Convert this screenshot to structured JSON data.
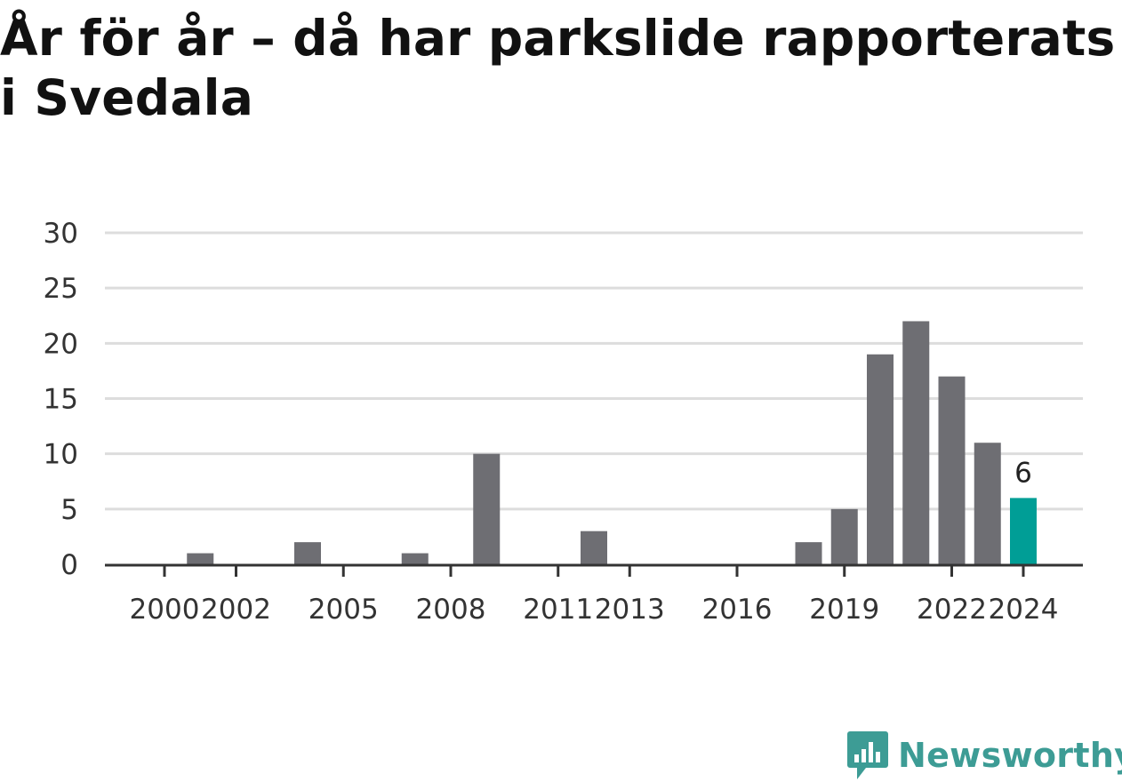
{
  "title": "År för år – då har parkslide rapporterats i Svedala",
  "brand": {
    "name": "Newsworthy",
    "icon": "newsworthy-logo-icon",
    "color": "#3d9c95"
  },
  "colors": {
    "bar": "#6e6e73",
    "highlight": "#009e96",
    "grid": "#dddddd",
    "axis": "#333333"
  },
  "chart_data": {
    "type": "bar",
    "title": "År för år – då har parkslide rapporterats i Svedala",
    "xlabel": "",
    "ylabel": "",
    "ylim": [
      0,
      30
    ],
    "yticks": [
      0,
      5,
      10,
      15,
      20,
      25,
      30
    ],
    "xticks": [
      "2000",
      "2002",
      "2005",
      "2008",
      "2011",
      "2013",
      "2016",
      "2019",
      "2022",
      "2024"
    ],
    "grid": true,
    "categories": [
      "2000",
      "2001",
      "2002",
      "2003",
      "2004",
      "2005",
      "2006",
      "2007",
      "2008",
      "2009",
      "2010",
      "2011",
      "2012",
      "2013",
      "2014",
      "2015",
      "2016",
      "2017",
      "2018",
      "2019",
      "2020",
      "2021",
      "2022",
      "2023",
      "2024"
    ],
    "values": [
      0,
      1,
      0,
      0,
      2,
      0,
      0,
      1,
      0,
      10,
      0,
      0,
      3,
      0,
      0,
      0,
      0,
      0,
      2,
      5,
      19,
      22,
      17,
      11,
      6
    ],
    "highlight": {
      "category": "2024",
      "value": 6,
      "label": "6"
    }
  }
}
